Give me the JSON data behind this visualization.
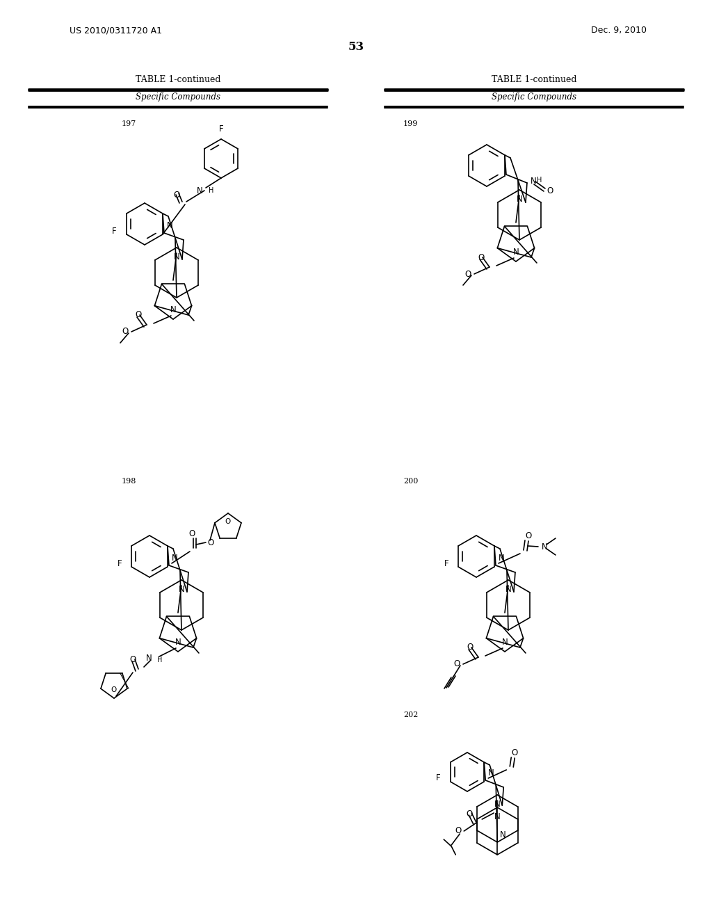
{
  "patent_number": "US 2010/0311720 A1",
  "patent_date": "Dec. 9, 2010",
  "page_number": "53",
  "table_title": "TABLE 1-continued",
  "table_subtitle": "Specific Compounds",
  "compounds": [
    "197",
    "198",
    "199",
    "200",
    "202"
  ],
  "bg_color": "#ffffff",
  "line_color": "#000000"
}
